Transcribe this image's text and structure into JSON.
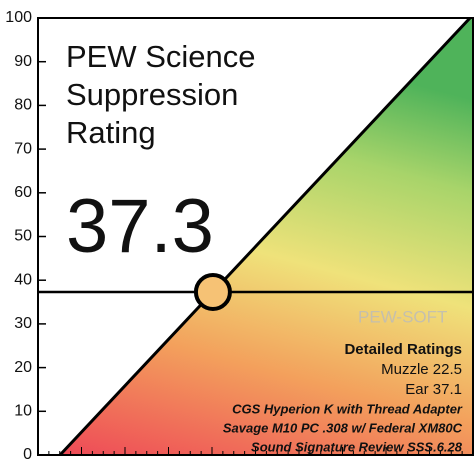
{
  "chart_data": {
    "type": "rating",
    "title": "PEW Science Suppression Rating",
    "value": 37.3,
    "ylim": [
      0,
      100
    ],
    "yticks": [
      0,
      10,
      20,
      30,
      40,
      50,
      60,
      70,
      80,
      90,
      100
    ],
    "watermark": "PEW-SOFT",
    "details": {
      "heading": "Detailed Ratings",
      "items": [
        "Muzzle 22.5",
        "Ear 37.1"
      ]
    },
    "notes": [
      "CGS Hyperion K with Thread Adapter",
      "Savage M10 PC .308 w/ Federal XM80C",
      "Sound Signature Review SSS.6.28"
    ]
  }
}
